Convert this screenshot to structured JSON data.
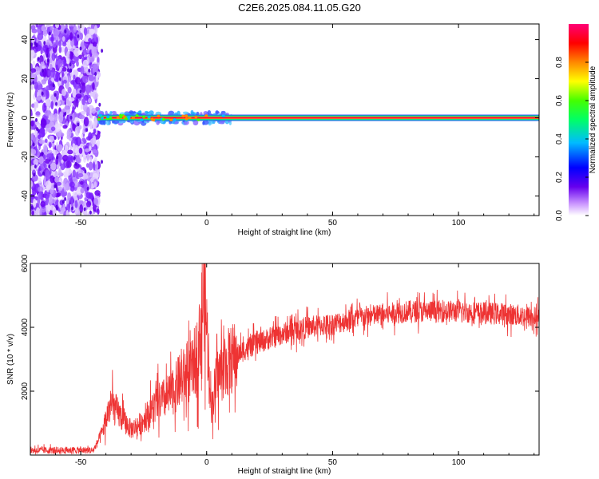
{
  "title": "C2E6.2025.084.11.05.G20",
  "charts": [
    {
      "type": "heatmap",
      "xlabel": "Height of straight line (km)",
      "ylabel": "Frequency (Hz)",
      "xlim": [
        -70,
        132
      ],
      "ylim": [
        -50,
        48
      ],
      "xticks": [
        "-50",
        "0",
        "50",
        "100"
      ],
      "yticks": [
        "-40",
        "-20",
        "0",
        "20",
        "40"
      ],
      "noise_region_end_km": -43,
      "signal_frequency_hz": 0,
      "colorbar": {
        "label": "Normalized spectral amplitude",
        "ticks": [
          "0.0",
          "0.2",
          "0.4",
          "0.6",
          "0.8"
        ],
        "range": [
          0,
          1
        ]
      }
    },
    {
      "type": "line",
      "xlabel": "Height of straight line (km)",
      "ylabel": "SNR (10 * v/v)",
      "xlim": [
        -70,
        132
      ],
      "ylim": [
        0,
        6000
      ],
      "xticks": [
        "-50",
        "0",
        "50",
        "100"
      ],
      "yticks": [
        "2000",
        "4000",
        "6000"
      ],
      "color": "#ee3333",
      "series_profile": [
        [
          -70,
          150
        ],
        [
          -45,
          150
        ],
        [
          -42,
          600
        ],
        [
          -38,
          1600
        ],
        [
          -34,
          1200
        ],
        [
          -30,
          800
        ],
        [
          -26,
          1000
        ],
        [
          -20,
          1600
        ],
        [
          -14,
          1900
        ],
        [
          -10,
          2400
        ],
        [
          -6,
          2600
        ],
        [
          -3,
          3400
        ],
        [
          -1,
          5200
        ],
        [
          0,
          4000
        ],
        [
          2,
          1500
        ],
        [
          4,
          2400
        ],
        [
          7,
          2800
        ],
        [
          10,
          3000
        ],
        [
          15,
          3300
        ],
        [
          20,
          3500
        ],
        [
          30,
          3800
        ],
        [
          40,
          4000
        ],
        [
          50,
          4100
        ],
        [
          60,
          4300
        ],
        [
          70,
          4400
        ],
        [
          80,
          4500
        ],
        [
          90,
          4500
        ],
        [
          100,
          4500
        ],
        [
          110,
          4450
        ],
        [
          120,
          4400
        ],
        [
          132,
          4300
        ]
      ]
    }
  ]
}
